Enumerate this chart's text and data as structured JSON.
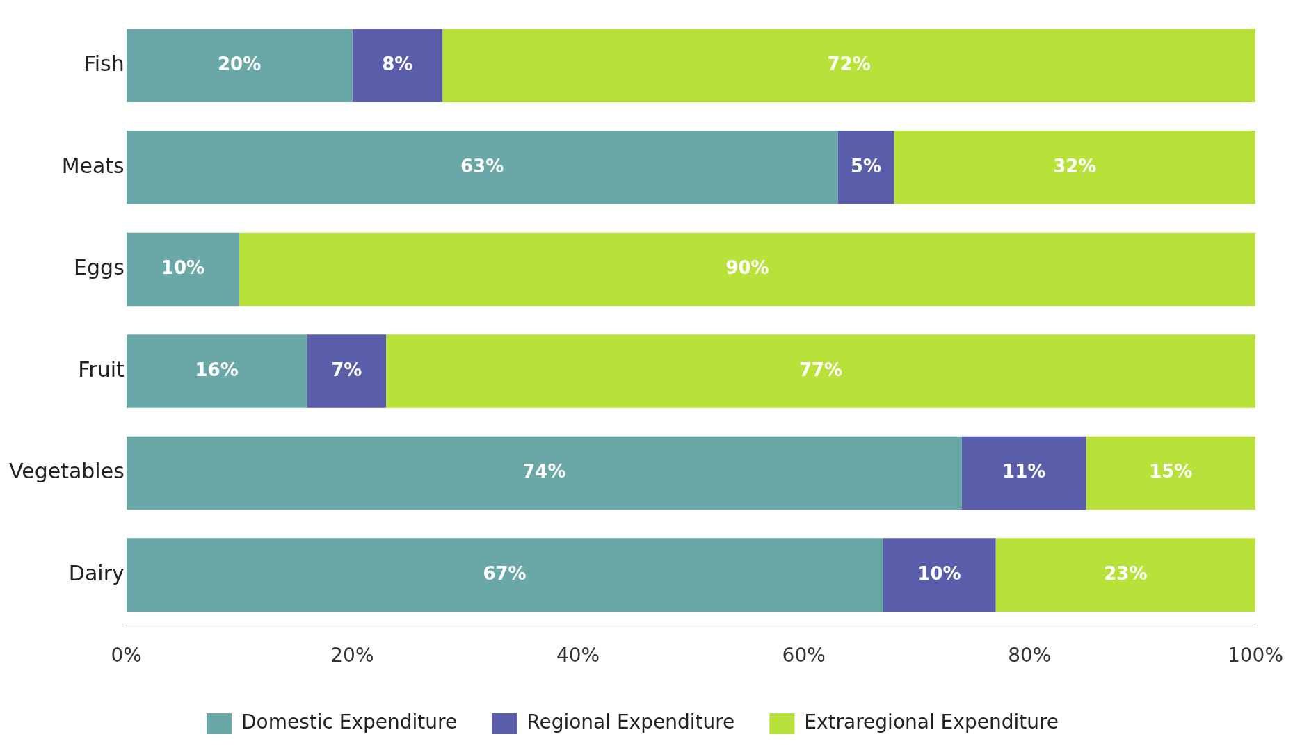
{
  "chart_data": {
    "type": "bar",
    "orientation": "horizontal",
    "stacked": true,
    "categories": [
      "Fish",
      "Meats",
      "Eggs",
      "Fruit",
      "Vegetables",
      "Dairy"
    ],
    "series": [
      {
        "name": "Domestic Expenditure",
        "color": "#6aa8a8",
        "values": [
          20,
          63,
          10,
          16,
          74,
          67
        ],
        "value_labels": [
          "20%",
          "63%",
          "10%",
          "16%",
          "74%",
          "67%"
        ]
      },
      {
        "name": "Regional Expenditure",
        "color": "#5a5eaa",
        "values": [
          8,
          5,
          null,
          7,
          11,
          10
        ],
        "value_labels": [
          "8%",
          "5%",
          null,
          "7%",
          "11%",
          "10%"
        ]
      },
      {
        "name": "Extraregional Expenditure",
        "color": "#b8e23a",
        "values": [
          72,
          32,
          90,
          77,
          15,
          23
        ],
        "value_labels": [
          "72%",
          "32%",
          "90%",
          "77%",
          "15%",
          "23%"
        ]
      }
    ],
    "xlim": [
      0,
      100
    ],
    "xticks": [
      {
        "value": 0,
        "label": "0%"
      },
      {
        "value": 20,
        "label": "20%"
      },
      {
        "value": 40,
        "label": "40%"
      },
      {
        "value": 60,
        "label": "60%"
      },
      {
        "value": 80,
        "label": "80%"
      },
      {
        "value": 100,
        "label": "100%"
      }
    ],
    "grid": false,
    "legend": "bottom"
  }
}
